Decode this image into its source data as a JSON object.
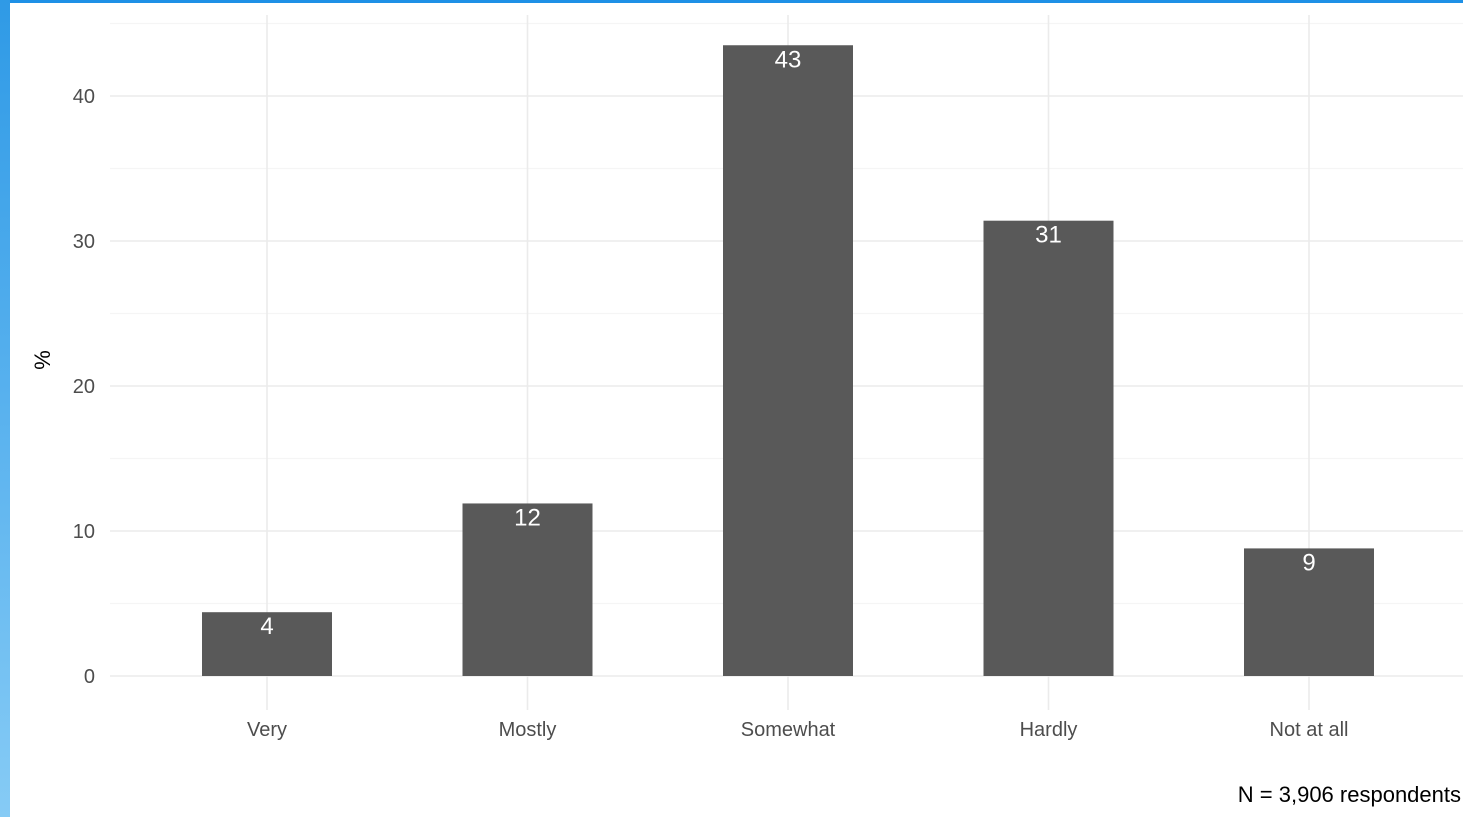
{
  "chart_data": {
    "type": "bar",
    "categories": [
      "Very",
      "Mostly",
      "Somewhat",
      "Hardly",
      "Not at all"
    ],
    "values": [
      4.4,
      11.9,
      43.5,
      31.4,
      8.8
    ],
    "data_labels": [
      "4",
      "12",
      "43",
      "31",
      "9"
    ],
    "title": "",
    "xlabel": "",
    "ylabel": "%",
    "ylim": [
      0,
      45
    ],
    "yticks": [
      0,
      10,
      20,
      30,
      40
    ],
    "grid": true,
    "legend": "none",
    "caption": "N =  3,906 respondents"
  },
  "colors": {
    "bar": "#595959",
    "grid_major": "#ebebeb",
    "grid_minor": "#f5f5f5",
    "frame": "#1e90e6"
  }
}
